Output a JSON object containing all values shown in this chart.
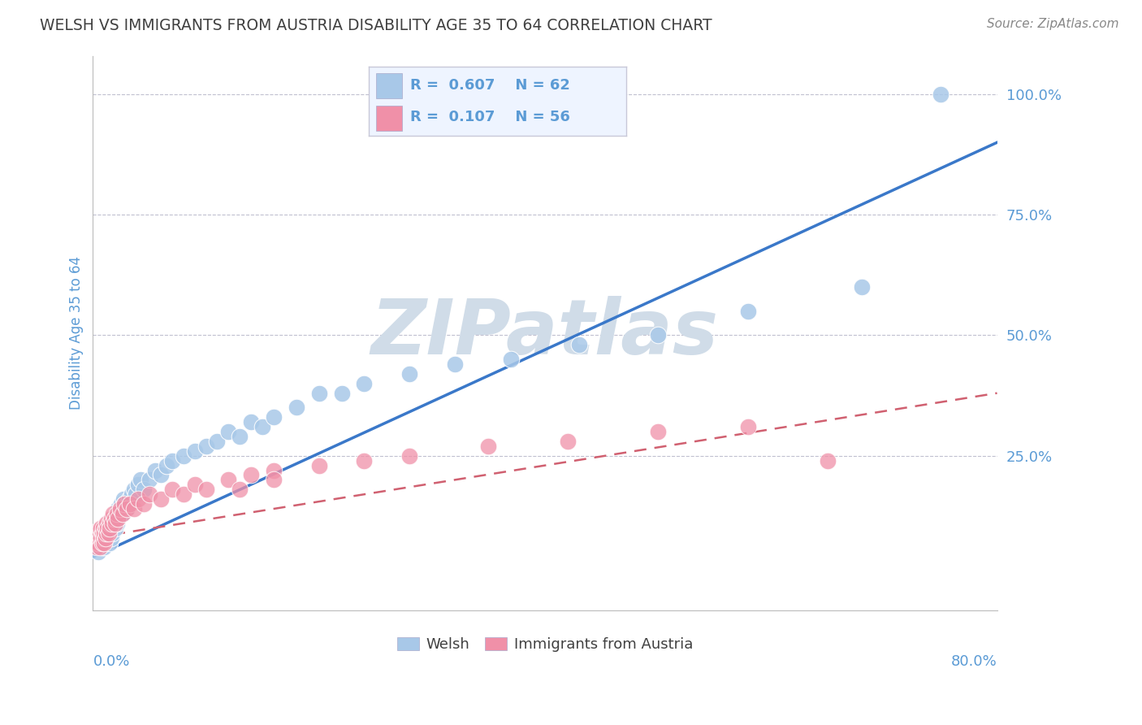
{
  "title": "WELSH VS IMMIGRANTS FROM AUSTRIA DISABILITY AGE 35 TO 64 CORRELATION CHART",
  "source": "Source: ZipAtlas.com",
  "ylabel": "Disability Age 35 to 64",
  "xmin": 0.0,
  "xmax": 0.8,
  "ymin": -0.07,
  "ymax": 1.08,
  "welsh_R": 0.607,
  "welsh_N": 62,
  "austria_R": 0.107,
  "austria_N": 56,
  "welsh_color": "#A8C8E8",
  "austria_color": "#F090A8",
  "trend_blue": "#3A78C9",
  "trend_pink": "#D06070",
  "grid_color": "#C0C0D0",
  "title_color": "#404040",
  "axis_label_color": "#5B9BD5",
  "watermark_color": "#D0DCE8",
  "legend_bg": "#EEF4FF",
  "legend_border": "#C8C8D8",
  "welsh_scatter_x": [
    0.005,
    0.008,
    0.01,
    0.01,
    0.012,
    0.012,
    0.013,
    0.014,
    0.015,
    0.015,
    0.016,
    0.016,
    0.017,
    0.018,
    0.018,
    0.019,
    0.02,
    0.02,
    0.021,
    0.021,
    0.022,
    0.022,
    0.023,
    0.024,
    0.025,
    0.026,
    0.027,
    0.028,
    0.03,
    0.032,
    0.034,
    0.036,
    0.038,
    0.04,
    0.042,
    0.045,
    0.05,
    0.055,
    0.06,
    0.065,
    0.07,
    0.08,
    0.09,
    0.1,
    0.11,
    0.12,
    0.13,
    0.14,
    0.15,
    0.16,
    0.18,
    0.2,
    0.22,
    0.24,
    0.28,
    0.32,
    0.37,
    0.43,
    0.5,
    0.58,
    0.68,
    0.75
  ],
  "welsh_scatter_y": [
    0.05,
    0.06,
    0.08,
    0.06,
    0.07,
    0.09,
    0.08,
    0.1,
    0.07,
    0.09,
    0.1,
    0.08,
    0.09,
    0.11,
    0.1,
    0.12,
    0.1,
    0.12,
    0.11,
    0.13,
    0.12,
    0.14,
    0.13,
    0.14,
    0.15,
    0.13,
    0.16,
    0.15,
    0.14,
    0.16,
    0.17,
    0.18,
    0.17,
    0.19,
    0.2,
    0.18,
    0.2,
    0.22,
    0.21,
    0.23,
    0.24,
    0.25,
    0.26,
    0.27,
    0.28,
    0.3,
    0.29,
    0.32,
    0.31,
    0.33,
    0.35,
    0.38,
    0.38,
    0.4,
    0.42,
    0.44,
    0.45,
    0.48,
    0.5,
    0.55,
    0.6,
    1.0
  ],
  "austria_scatter_x": [
    0.003,
    0.004,
    0.005,
    0.005,
    0.006,
    0.006,
    0.007,
    0.007,
    0.008,
    0.008,
    0.009,
    0.009,
    0.01,
    0.01,
    0.011,
    0.011,
    0.012,
    0.012,
    0.013,
    0.014,
    0.015,
    0.015,
    0.016,
    0.017,
    0.018,
    0.019,
    0.02,
    0.021,
    0.022,
    0.024,
    0.026,
    0.028,
    0.03,
    0.033,
    0.036,
    0.04,
    0.045,
    0.05,
    0.06,
    0.07,
    0.08,
    0.09,
    0.1,
    0.12,
    0.14,
    0.16,
    0.2,
    0.24,
    0.28,
    0.35,
    0.42,
    0.5,
    0.58,
    0.65,
    0.13,
    0.16
  ],
  "austria_scatter_y": [
    0.06,
    0.08,
    0.07,
    0.09,
    0.06,
    0.1,
    0.08,
    0.1,
    0.07,
    0.09,
    0.08,
    0.1,
    0.07,
    0.09,
    0.1,
    0.08,
    0.09,
    0.11,
    0.1,
    0.09,
    0.11,
    0.1,
    0.12,
    0.11,
    0.13,
    0.12,
    0.11,
    0.13,
    0.12,
    0.14,
    0.13,
    0.15,
    0.14,
    0.15,
    0.14,
    0.16,
    0.15,
    0.17,
    0.16,
    0.18,
    0.17,
    0.19,
    0.18,
    0.2,
    0.21,
    0.22,
    0.23,
    0.24,
    0.25,
    0.27,
    0.28,
    0.3,
    0.31,
    0.24,
    0.18,
    0.2
  ],
  "blue_trend_x0": 0.0,
  "blue_trend_y0": 0.04,
  "blue_trend_x1": 0.8,
  "blue_trend_y1": 0.9,
  "pink_trend_x0": 0.0,
  "pink_trend_y0": 0.08,
  "pink_trend_x1": 0.8,
  "pink_trend_y1": 0.38
}
